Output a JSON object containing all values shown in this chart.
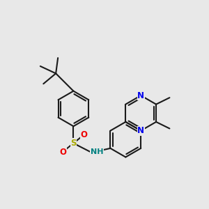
{
  "background_color": "#e8e8e8",
  "bond_color": "#1a1a1a",
  "bond_lw": 1.5,
  "atom_colors": {
    "N": "#0000ee",
    "O": "#ee0000",
    "S": "#aaaa00",
    "NH": "#008080",
    "C": "#1a1a1a"
  },
  "font_size": 8.5
}
